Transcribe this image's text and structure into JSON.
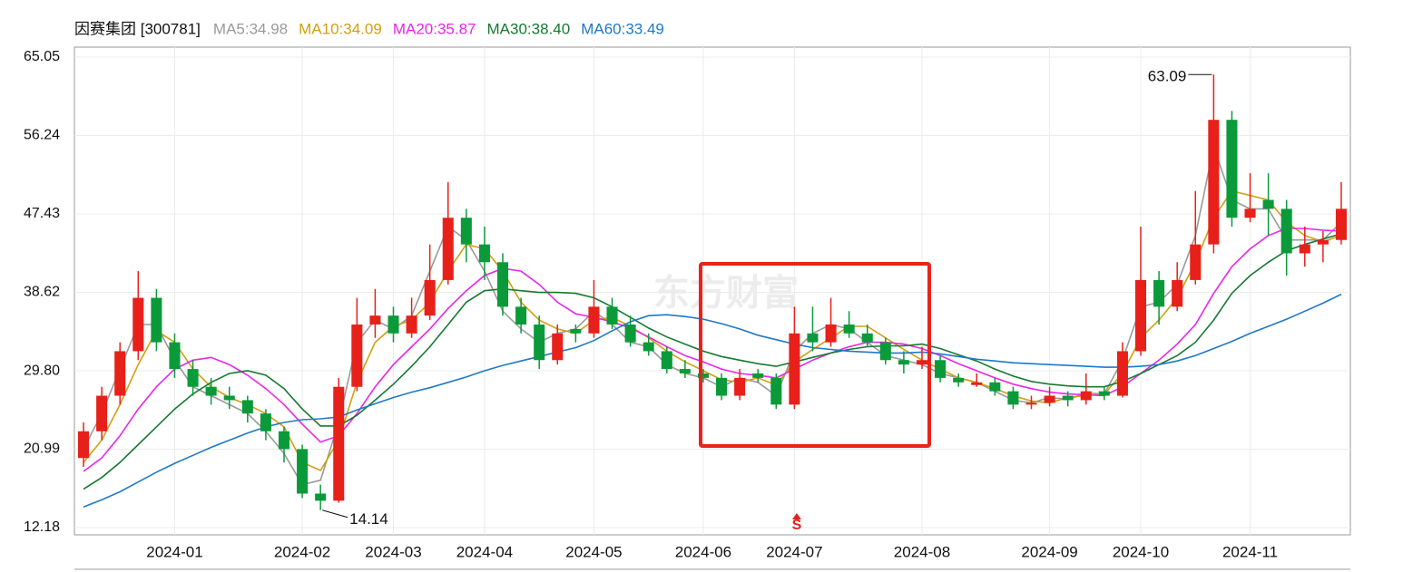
{
  "chart_data": {
    "type": "candlestick",
    "title": "因赛集团 [300781]",
    "watermark": "东方财富",
    "signal": "S",
    "categories": [
      null,
      null,
      null,
      null,
      null,
      "2024-01",
      null,
      null,
      null,
      null,
      null,
      null,
      "2024-02",
      null,
      null,
      null,
      null,
      "2024-03",
      null,
      null,
      null,
      null,
      "2024-04",
      null,
      null,
      null,
      null,
      null,
      "2024-05",
      null,
      null,
      null,
      null,
      null,
      "2024-06",
      null,
      null,
      null,
      null,
      "2024-07",
      null,
      null,
      null,
      null,
      null,
      null,
      "2024-08",
      null,
      null,
      null,
      null,
      null,
      null,
      "2024-09",
      null,
      null,
      null,
      null,
      "2024-10",
      null,
      null,
      null,
      null,
      null,
      "2024-11",
      null,
      null,
      null,
      null,
      null
    ],
    "open": [
      20,
      23,
      27,
      32,
      38,
      33,
      30,
      28,
      27,
      26.5,
      25,
      23,
      21,
      16,
      15.2,
      28,
      35,
      36,
      34,
      36,
      40,
      47,
      44,
      42,
      37,
      35,
      31,
      34.5,
      34,
      37,
      35,
      33,
      32,
      30,
      29.5,
      29,
      27,
      29.5,
      29,
      26,
      34,
      33,
      35,
      34,
      33,
      31,
      30.5,
      31,
      29,
      28.2,
      28.5,
      27.5,
      26,
      26.2,
      27,
      26.5,
      27.5,
      27,
      32,
      40,
      37,
      40,
      44,
      58,
      47,
      49,
      48,
      43,
      44,
      44.5
    ],
    "high": [
      24,
      28,
      33,
      41,
      39,
      34,
      31,
      29,
      28,
      27,
      25.5,
      23.5,
      21.5,
      17,
      29,
      38,
      39,
      37,
      38,
      44,
      51,
      48,
      46,
      43,
      38,
      36,
      35,
      35,
      40,
      38,
      36,
      34,
      32.5,
      31,
      30,
      29.5,
      30,
      30,
      29.5,
      37,
      37,
      38,
      36.5,
      35,
      33.5,
      32,
      32.5,
      31.5,
      29.5,
      29.5,
      29,
      28,
      27,
      28,
      27.5,
      29.5,
      28,
      33,
      46,
      41,
      42,
      50,
      63.09,
      59,
      52,
      52,
      49,
      46,
      45.5,
      51
    ],
    "low": [
      19,
      22,
      26,
      31,
      32,
      29,
      27,
      26,
      25.5,
      24,
      22,
      19.5,
      15.5,
      14.14,
      15,
      27.5,
      33.5,
      33,
      33.5,
      35.5,
      39.5,
      42,
      40,
      36,
      34,
      30,
      30.5,
      33,
      33.5,
      34.5,
      32.5,
      31.5,
      29.5,
      29,
      28.5,
      26.5,
      26.5,
      28.5,
      25.5,
      25.5,
      32,
      32.5,
      33.5,
      32.5,
      30.5,
      29.5,
      30,
      28.5,
      28,
      28,
      27,
      25.5,
      25.5,
      25.8,
      25.8,
      26,
      26.5,
      26.8,
      31.5,
      35,
      36.5,
      39.5,
      43,
      46,
      46.5,
      45,
      40.5,
      41.5,
      42,
      44
    ],
    "close": [
      23,
      27,
      32,
      38,
      33,
      30,
      28,
      27,
      26.5,
      25,
      23,
      21,
      16,
      15.2,
      28,
      35,
      36,
      34,
      36,
      40,
      47,
      44,
      42,
      37,
      35,
      31,
      34,
      34,
      37,
      35,
      33,
      32,
      30,
      29.5,
      29,
      27,
      29,
      29,
      26,
      34,
      33,
      35,
      34,
      33,
      31,
      30.5,
      31,
      29,
      28.5,
      28.5,
      27.5,
      26,
      26.2,
      27,
      26.5,
      27.5,
      27,
      32,
      40,
      37,
      40,
      44,
      58,
      47,
      48,
      48,
      43,
      44,
      44.5,
      48
    ],
    "up_color": "#e8201a",
    "down_color": "#0a9a3a",
    "series": [
      {
        "name": "MA5:34.98",
        "color": "#9a9a9a",
        "values": [
          21,
          25,
          30,
          35,
          35,
          31,
          28,
          27,
          26,
          25,
          23,
          20.5,
          17,
          17.5,
          24,
          33,
          35.5,
          34.5,
          36,
          41,
          46,
          44.5,
          41,
          36.5,
          34.5,
          33,
          34,
          34.5,
          36.5,
          35,
          33,
          32.5,
          30.5,
          29.5,
          29,
          28,
          29,
          28.5,
          27,
          32,
          34,
          35,
          34.5,
          33,
          31.5,
          31,
          30.5,
          29.5,
          29,
          28.5,
          27.5,
          26.5,
          26.2,
          26.8,
          26.6,
          27.3,
          27.2,
          31,
          37,
          37.5,
          39.5,
          45,
          55,
          49,
          48,
          48,
          44.5,
          44.5,
          44.5,
          46.5
        ]
      },
      {
        "name": "MA10:34.09",
        "color": "#d19f12",
        "values": [
          19.5,
          22,
          26,
          30.5,
          34.3,
          33,
          30,
          28,
          26.8,
          26,
          25,
          23.5,
          19.5,
          18.6,
          22,
          28.5,
          33,
          34.8,
          35.5,
          37.5,
          41,
          44,
          43.5,
          41,
          37.5,
          35.5,
          34.5,
          34,
          35.5,
          35.8,
          34.8,
          33.5,
          32,
          30.8,
          29.8,
          28.8,
          28.5,
          29,
          28.2,
          30.8,
          32.2,
          33.5,
          34.8,
          34.8,
          33.5,
          32.2,
          31,
          30,
          29,
          28.5,
          27.8,
          27,
          26.4,
          26.2,
          26.8,
          27,
          27.2,
          29.5,
          33.5,
          35.5,
          38,
          42,
          47,
          50,
          49.5,
          49,
          46.5,
          45,
          44.3,
          45
        ]
      },
      {
        "name": "MA20:35.87",
        "color": "#e826e8",
        "values": [
          18.5,
          20,
          22.5,
          25.5,
          28,
          30,
          31,
          31.3,
          30.5,
          29.3,
          27.8,
          26,
          23.8,
          21.8,
          22.5,
          25,
          28,
          30.5,
          32.5,
          34.5,
          36.8,
          38.8,
          40.5,
          41.3,
          41,
          39.5,
          37.5,
          36.2,
          35.8,
          35.3,
          34.6,
          33.6,
          32.5,
          31.5,
          30.8,
          30,
          29.5,
          29.3,
          29,
          30,
          31,
          31.8,
          32.5,
          33,
          33,
          32.8,
          32.3,
          31.5,
          30.6,
          29.8,
          29,
          28.3,
          27.8,
          27.4,
          27.2,
          27.1,
          27,
          28,
          29.5,
          31,
          32.8,
          35,
          38.5,
          41.5,
          43.5,
          45,
          45.8,
          45.8,
          45.6,
          45.5
        ]
      },
      {
        "name": "MA30:38.40",
        "color": "#157a30",
        "values": [
          16.5,
          17.8,
          19.5,
          21.5,
          23.5,
          25.5,
          27.2,
          28.5,
          29.5,
          29.8,
          29.3,
          27.8,
          25.5,
          23.6,
          23.6,
          24.8,
          26.5,
          28.3,
          30.3,
          32.5,
          35,
          37.5,
          38.8,
          39,
          38.8,
          38.6,
          38.6,
          38.5,
          38,
          37,
          35.8,
          34.6,
          33.6,
          32.8,
          32,
          31.4,
          31,
          30.6,
          30.3,
          30.8,
          31.3,
          31.8,
          32.2,
          32.5,
          32.6,
          32.6,
          32.8,
          32.3,
          31.6,
          30.9,
          30,
          29.2,
          28.6,
          28.3,
          28.1,
          28,
          28,
          28.6,
          29.5,
          30.5,
          31.5,
          33,
          35.5,
          38.5,
          40.5,
          42,
          43.3,
          44,
          44.6,
          45.2
        ]
      },
      {
        "name": "MA60:33.49",
        "color": "#1f78c8",
        "values": [
          14.5,
          15.3,
          16.2,
          17.3,
          18.4,
          19.4,
          20.3,
          21.2,
          22,
          22.8,
          23.5,
          24,
          24.3,
          24.4,
          24.6,
          25.4,
          26.1,
          26.8,
          27.4,
          27.9,
          28.5,
          29.1,
          29.8,
          30.4,
          30.9,
          31.4,
          31.9,
          32.4,
          33.2,
          34.3,
          35.3,
          36,
          36.1,
          35.9,
          35.6,
          35.1,
          34.5,
          33.8,
          33.3,
          32.8,
          32.4,
          32.2,
          32,
          31.9,
          31.8,
          31.8,
          31.9,
          31.7,
          31.4,
          31.1,
          30.9,
          30.7,
          30.6,
          30.5,
          30.4,
          30.3,
          30.2,
          30.2,
          30.3,
          30.5,
          30.9,
          31.5,
          32.3,
          33.1,
          34,
          34.8,
          35.6,
          36.5,
          37.4,
          38.4
        ]
      }
    ],
    "ylim": [
      12.18,
      65.05
    ],
    "yticks": [
      12.18,
      20.99,
      {
        "value": 29.8,
        "label": "29.80"
      },
      38.62,
      47.43,
      56.24,
      65.05
    ],
    "grid": true
  }
}
